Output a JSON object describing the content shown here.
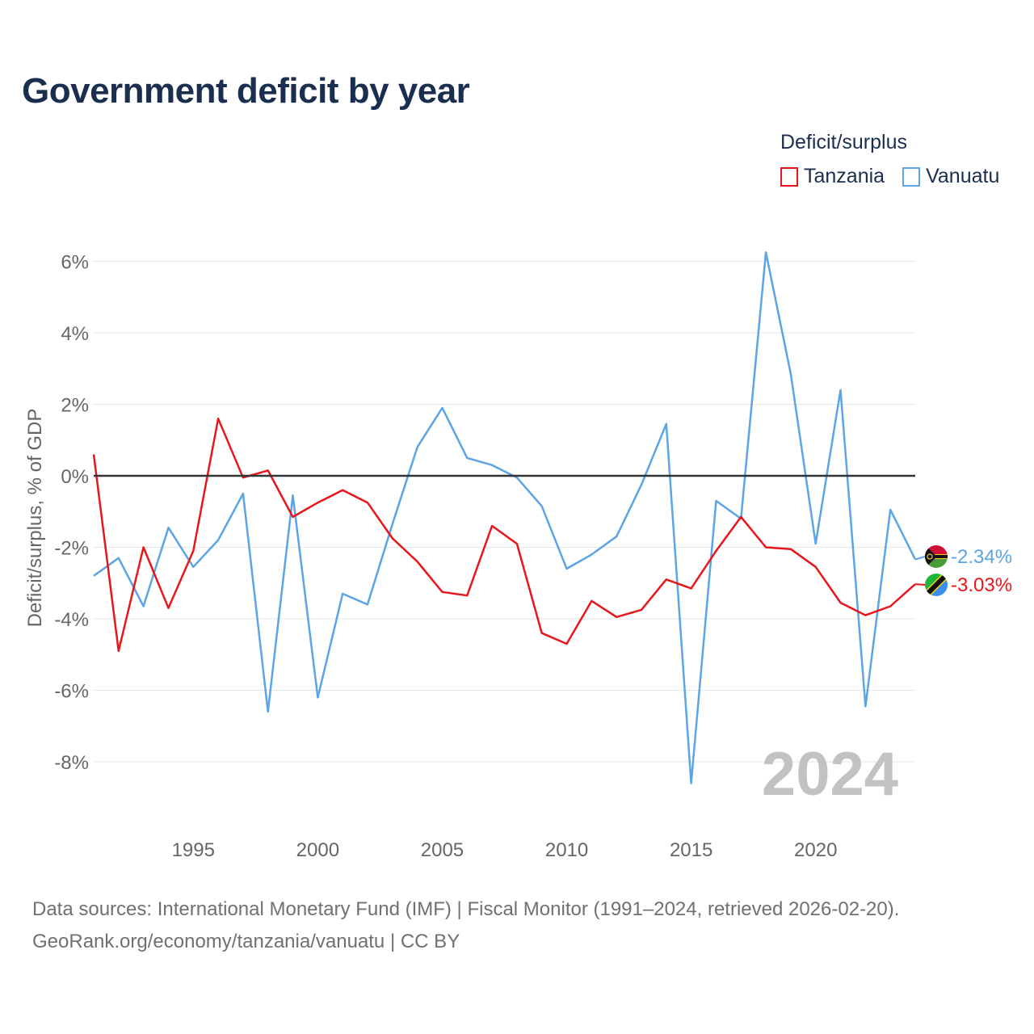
{
  "title": "Government deficit by year",
  "legend": {
    "title": "Deficit/surplus",
    "items": [
      {
        "name": "Tanzania",
        "color": "#e8161b"
      },
      {
        "name": "Vanuatu",
        "color": "#5ba4e6"
      }
    ]
  },
  "footer": {
    "line1": "Data sources: International Monetary Fund (IMF) | Fiscal Monitor (1991–2024, retrieved 2026-02-20).",
    "line2": "GeoRank.org/economy/tanzania/vanuatu | CC BY"
  },
  "chart_data": {
    "type": "line",
    "title": "Government deficit by year",
    "xlabel": "",
    "ylabel": "Deficit/surplus, % of GDP",
    "xlim": [
      1991,
      2024
    ],
    "ylim": [
      -10,
      7
    ],
    "x_ticks": [
      1995,
      2000,
      2005,
      2010,
      2015,
      2020
    ],
    "x_tick_labels": [
      "1995",
      "2000",
      "2005",
      "2010",
      "2015",
      "2020"
    ],
    "y_ticks": [
      6,
      4,
      2,
      0,
      -2,
      -4,
      -6,
      -8
    ],
    "y_tick_labels": [
      "6%",
      "4%",
      "2%",
      "0%",
      "-2%",
      "-4%",
      "-6%",
      "-8%"
    ],
    "year_watermark": "2024",
    "x": [
      1991,
      1992,
      1993,
      1994,
      1995,
      1996,
      1997,
      1998,
      1999,
      2000,
      2001,
      2002,
      2003,
      2004,
      2005,
      2006,
      2007,
      2008,
      2009,
      2010,
      2011,
      2012,
      2013,
      2014,
      2015,
      2016,
      2017,
      2018,
      2019,
      2020,
      2021,
      2022,
      2023,
      2024
    ],
    "series": [
      {
        "name": "Tanzania",
        "color": "#e8161b",
        "end_label": "-3.03%",
        "values": [
          0.6,
          -4.9,
          -2.0,
          -3.7,
          -2.1,
          1.6,
          -0.05,
          0.15,
          -1.15,
          -0.75,
          -0.4,
          -0.75,
          -1.75,
          -2.4,
          -3.25,
          -3.35,
          -1.4,
          -1.9,
          -4.4,
          -4.7,
          -3.5,
          -3.95,
          -3.75,
          -2.9,
          -3.15,
          -2.1,
          -1.15,
          -2.0,
          -2.05,
          -2.55,
          -3.55,
          -3.9,
          -3.65,
          -3.03
        ]
      },
      {
        "name": "Vanuatu",
        "color": "#5ba4e6",
        "end_label": "-2.34%",
        "values": [
          -2.8,
          -2.3,
          -3.65,
          -1.45,
          -2.55,
          -1.8,
          -0.5,
          -6.6,
          -0.55,
          -6.2,
          -3.3,
          -3.6,
          -1.35,
          0.8,
          1.9,
          0.5,
          0.3,
          -0.05,
          -0.85,
          -2.6,
          -2.2,
          -1.7,
          -0.25,
          1.45,
          -8.6,
          -0.7,
          -1.2,
          6.25,
          2.85,
          -1.9,
          2.4,
          -6.45,
          -0.95,
          -2.34
        ]
      }
    ]
  }
}
